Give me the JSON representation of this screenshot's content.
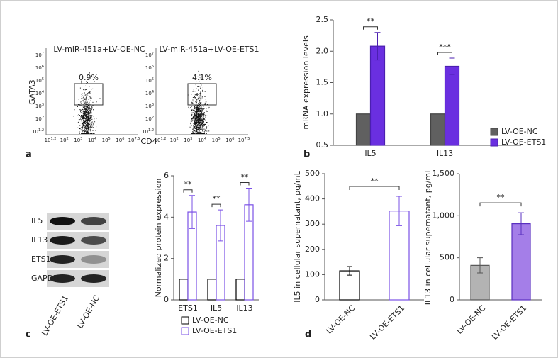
{
  "panel_labels": [
    "a",
    "b",
    "c",
    "d"
  ],
  "flow_panel": {
    "y_label": "GATA3",
    "x_label": "CD4",
    "base": "10",
    "x_tick_exponents": [
      "1.2",
      "2",
      "3",
      "4",
      "5",
      "6",
      "7.5"
    ],
    "y_tick_exponents": [
      "7",
      "6",
      "5",
      "4",
      "3",
      "2",
      "1.2"
    ],
    "plots": [
      {
        "title": "LV-miR-451a+LV-OE-NC",
        "gate": "0.9%"
      },
      {
        "title": "LV-miR-451a+LV-OE-ETS1",
        "gate": "4.1%"
      }
    ]
  },
  "blot": {
    "rows": [
      "IL5",
      "IL13",
      "ETS1",
      "GAPDH"
    ],
    "lanes": [
      "LV-OE-ETS1",
      "LV-OE-NC"
    ]
  },
  "chart_data": [
    {
      "type": "bar",
      "y_label": "mRNA expression levels",
      "categories": [
        "IL5",
        "IL13"
      ],
      "series": [
        {
          "name": "LV-OE-NC",
          "color": "#606060",
          "edge_color": "#444444",
          "values": [
            1,
            1
          ],
          "errors": [
            0,
            0
          ]
        },
        {
          "name": "LV-OE-ETS1",
          "color": "#6a2fe0",
          "edge_color": "#4b1fb0",
          "values": [
            2.08,
            1.76
          ],
          "errors": [
            0.22,
            0.13
          ]
        }
      ],
      "annotations": [
        "**",
        "***"
      ],
      "ylim": [
        0.5,
        2.5
      ],
      "yticks": [
        0.5,
        {
          "value": 1,
          "label": "1.0"
        },
        1.5,
        {
          "value": 2,
          "label": "2.0"
        },
        2.5
      ]
    },
    {
      "type": "bar",
      "y_label": "Normalized protein expression",
      "categories": [
        "ETS1",
        "IL5",
        "IL13"
      ],
      "series": [
        {
          "name": "LV-OE-NC",
          "color": "#ffffff",
          "edge_color": "#000000",
          "values": [
            1,
            1,
            1
          ],
          "errors": [
            0,
            0,
            0
          ]
        },
        {
          "name": "LV-OE-ETS1",
          "color": "#ffffff",
          "edge_color": "#7a50e6",
          "values": [
            4.25,
            3.6,
            4.6
          ],
          "errors": [
            0.8,
            0.75,
            0.8
          ]
        }
      ],
      "annotations": [
        "**",
        "**",
        "**"
      ],
      "ylim": [
        0,
        6
      ],
      "yticks": [
        0,
        2,
        4,
        6
      ]
    },
    {
      "type": "bar",
      "y_label": "IL5 in cellular supernatant, pg/mL",
      "categories": [
        "LV-OE-NC",
        "LV-OE-ETS1"
      ],
      "series": [
        {
          "colors": [
            "#ffffff",
            "#ffffff"
          ],
          "edge_colors": [
            "#000000",
            "#7a50e6"
          ],
          "values": [
            115,
            352
          ],
          "errors": [
            17,
            58
          ]
        }
      ],
      "annotation": "**",
      "ylim": [
        0,
        500
      ],
      "yticks": [
        0,
        100,
        200,
        300,
        400,
        500
      ]
    },
    {
      "type": "bar",
      "y_label": "IL13 in cellular supernatant, pg/mL",
      "categories": [
        "LV-OE-NC",
        "LV-OE-ETS1"
      ],
      "series": [
        {
          "colors": [
            "#b3b3b3",
            "#a47ee8"
          ],
          "edge_colors": [
            "#555555",
            "#5a30c0"
          ],
          "values": [
            410,
            905
          ],
          "errors": [
            90,
            130
          ]
        }
      ],
      "annotation": "**",
      "ylim": [
        0,
        1500
      ],
      "yticks": [
        0,
        500,
        {
          "value": 1000,
          "label": "1,000"
        },
        {
          "value": 1500,
          "label": "1,500"
        }
      ]
    }
  ]
}
